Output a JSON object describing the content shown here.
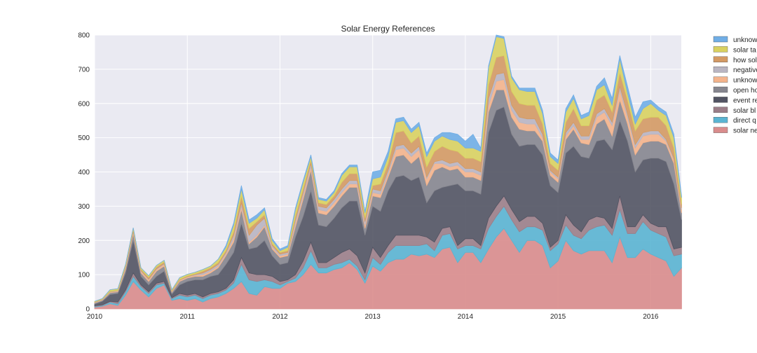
{
  "chart_data": {
    "type": "area",
    "stacked": true,
    "title": "Solar Energy References",
    "xlabel": "",
    "ylabel": "",
    "xlim": [
      2010.0,
      2016.33
    ],
    "ylim": [
      0,
      800
    ],
    "x_ticks": [
      "2010",
      "2011",
      "2012",
      "2013",
      "2014",
      "2015",
      "2016"
    ],
    "y_ticks": [
      "0",
      "100",
      "200",
      "300",
      "400",
      "500",
      "600",
      "700",
      "800"
    ],
    "grid": true,
    "background": "#eaeaf2",
    "legend_position": "right, outside",
    "x": [
      "2010-01",
      "2010-02",
      "2010-03",
      "2010-04",
      "2010-05",
      "2010-06",
      "2010-07",
      "2010-08",
      "2010-09",
      "2010-10",
      "2010-11",
      "2010-12",
      "2011-01",
      "2011-02",
      "2011-03",
      "2011-04",
      "2011-05",
      "2011-06",
      "2011-07",
      "2011-08",
      "2011-09",
      "2011-10",
      "2011-11",
      "2011-12",
      "2012-01",
      "2012-02",
      "2012-03",
      "2012-04",
      "2012-05",
      "2012-06",
      "2012-07",
      "2012-08",
      "2012-09",
      "2012-10",
      "2012-11",
      "2012-12",
      "2013-01",
      "2013-02",
      "2013-03",
      "2013-04",
      "2013-05",
      "2013-06",
      "2013-07",
      "2013-08",
      "2013-09",
      "2013-10",
      "2013-11",
      "2013-12",
      "2014-01",
      "2014-02",
      "2014-03",
      "2014-04",
      "2014-05",
      "2014-06",
      "2014-07",
      "2014-08",
      "2014-09",
      "2014-10",
      "2014-11",
      "2014-12",
      "2015-01",
      "2015-02",
      "2015-03",
      "2015-04",
      "2015-05",
      "2015-06",
      "2015-07",
      "2015-08",
      "2015-09",
      "2015-10",
      "2015-11",
      "2015-12",
      "2016-01",
      "2016-02",
      "2016-03",
      "2016-04",
      "2016-05"
    ],
    "series": [
      {
        "name": "solar ne",
        "color": "#d98c8c",
        "values": [
          5,
          8,
          15,
          10,
          40,
          80,
          55,
          35,
          60,
          70,
          25,
          30,
          25,
          30,
          20,
          30,
          35,
          45,
          60,
          80,
          45,
          40,
          65,
          60,
          60,
          75,
          80,
          100,
          130,
          105,
          105,
          115,
          120,
          135,
          115,
          75,
          125,
          110,
          135,
          145,
          145,
          160,
          155,
          160,
          150,
          175,
          180,
          135,
          165,
          165,
          135,
          175,
          210,
          235,
          200,
          165,
          200,
          200,
          185,
          120,
          140,
          200,
          170,
          160,
          170,
          170,
          170,
          135,
          210,
          150,
          150,
          175,
          160,
          150,
          140,
          95,
          120
        ]
      },
      {
        "name": "direct q",
        "color": "#5ab4d2",
        "values": [
          2,
          2,
          5,
          5,
          10,
          15,
          10,
          10,
          10,
          5,
          5,
          10,
          10,
          10,
          10,
          10,
          10,
          10,
          15,
          50,
          40,
          40,
          20,
          20,
          10,
          5,
          10,
          20,
          40,
          15,
          15,
          15,
          15,
          10,
          10,
          10,
          25,
          20,
          30,
          40,
          40,
          25,
          30,
          30,
          20,
          40,
          40,
          40,
          20,
          20,
          40,
          60,
          60,
          65,
          60,
          60,
          40,
          40,
          45,
          50,
          50,
          45,
          45,
          45,
          60,
          70,
          75,
          80,
          80,
          70,
          70,
          80,
          70,
          70,
          70,
          60,
          40
        ]
      },
      {
        "name": "solar bl",
        "color": "#9b7e88",
        "values": [
          2,
          2,
          2,
          5,
          5,
          10,
          5,
          5,
          5,
          5,
          3,
          5,
          5,
          5,
          5,
          5,
          5,
          5,
          10,
          20,
          20,
          20,
          15,
          15,
          10,
          5,
          10,
          20,
          25,
          15,
          15,
          20,
          30,
          30,
          30,
          20,
          30,
          20,
          20,
          30,
          30,
          30,
          30,
          20,
          25,
          20,
          20,
          10,
          20,
          20,
          10,
          30,
          30,
          30,
          30,
          30,
          30,
          30,
          20,
          10,
          10,
          30,
          30,
          20,
          30,
          30,
          20,
          20,
          40,
          20,
          20,
          20,
          20,
          20,
          30,
          20,
          20
        ]
      },
      {
        "name": "event re",
        "color": "#525463",
        "values": [
          5,
          10,
          20,
          25,
          50,
          95,
          25,
          20,
          20,
          30,
          10,
          25,
          40,
          40,
          50,
          50,
          50,
          70,
          80,
          100,
          70,
          80,
          100,
          60,
          50,
          50,
          110,
          130,
          150,
          110,
          105,
          115,
          130,
          140,
          160,
          110,
          120,
          135,
          160,
          170,
          175,
          160,
          170,
          100,
          150,
          120,
          120,
          180,
          140,
          140,
          150,
          250,
          280,
          260,
          220,
          220,
          210,
          210,
          200,
          180,
          140,
          180,
          230,
          220,
          180,
          220,
          230,
          230,
          220,
          250,
          160,
          160,
          190,
          200,
          190,
          190,
          80
        ]
      },
      {
        "name": "open ho",
        "color": "#86868f",
        "values": [
          3,
          3,
          5,
          5,
          10,
          20,
          10,
          10,
          15,
          15,
          5,
          10,
          10,
          10,
          10,
          10,
          20,
          25,
          30,
          40,
          15,
          30,
          40,
          20,
          20,
          20,
          30,
          50,
          60,
          35,
          35,
          35,
          35,
          40,
          40,
          20,
          30,
          40,
          40,
          60,
          60,
          50,
          60,
          50,
          60,
          60,
          45,
          45,
          40,
          40,
          40,
          60,
          60,
          50,
          50,
          50,
          40,
          40,
          40,
          30,
          30,
          40,
          50,
          40,
          40,
          50,
          60,
          40,
          60,
          50,
          50,
          50,
          50,
          50,
          50,
          60,
          20
        ]
      },
      {
        "name": "unknow",
        "color": "#f4b48c",
        "values": [
          1,
          1,
          2,
          2,
          5,
          5,
          5,
          5,
          5,
          5,
          2,
          3,
          3,
          3,
          5,
          5,
          5,
          5,
          10,
          10,
          5,
          5,
          5,
          5,
          5,
          5,
          10,
          10,
          10,
          10,
          10,
          10,
          10,
          10,
          10,
          10,
          10,
          10,
          10,
          20,
          20,
          20,
          20,
          20,
          20,
          10,
          10,
          10,
          15,
          15,
          15,
          20,
          25,
          30,
          20,
          20,
          20,
          20,
          10,
          10,
          10,
          10,
          10,
          10,
          15,
          20,
          20,
          30,
          30,
          20,
          20,
          20,
          20,
          20,
          10,
          10,
          10
        ]
      },
      {
        "name": "negative",
        "color": "#b9b5c2",
        "values": [
          1,
          1,
          1,
          1,
          2,
          2,
          2,
          2,
          2,
          2,
          1,
          1,
          1,
          2,
          5,
          5,
          5,
          5,
          10,
          10,
          20,
          30,
          20,
          5,
          5,
          5,
          10,
          10,
          10,
          10,
          10,
          10,
          10,
          10,
          10,
          10,
          10,
          10,
          10,
          10,
          10,
          10,
          10,
          5,
          5,
          10,
          10,
          10,
          10,
          10,
          10,
          20,
          20,
          20,
          15,
          15,
          15,
          15,
          10,
          5,
          5,
          10,
          10,
          10,
          10,
          10,
          10,
          10,
          10,
          10,
          10,
          10,
          10,
          10,
          5,
          5,
          5
        ]
      },
      {
        "name": "how sol",
        "color": "#d49a64",
        "values": [
          1,
          1,
          1,
          1,
          3,
          5,
          3,
          5,
          5,
          5,
          2,
          2,
          2,
          2,
          5,
          5,
          5,
          5,
          10,
          20,
          20,
          10,
          10,
          5,
          5,
          5,
          10,
          10,
          10,
          10,
          10,
          10,
          20,
          20,
          20,
          10,
          10,
          20,
          20,
          40,
          40,
          30,
          30,
          30,
          30,
          40,
          40,
          30,
          30,
          30,
          30,
          40,
          50,
          50,
          40,
          40,
          40,
          40,
          30,
          20,
          20,
          30,
          40,
          30,
          30,
          40,
          40,
          30,
          40,
          40,
          40,
          40,
          40,
          40,
          40,
          30,
          10
        ]
      },
      {
        "name": "solar ta",
        "color": "#d9d160",
        "values": [
          2,
          2,
          5,
          5,
          5,
          5,
          5,
          5,
          5,
          5,
          3,
          5,
          5,
          5,
          5,
          5,
          10,
          10,
          20,
          20,
          15,
          10,
          15,
          10,
          5,
          10,
          20,
          20,
          10,
          10,
          10,
          10,
          20,
          20,
          20,
          15,
          20,
          20,
          20,
          30,
          30,
          30,
          30,
          30,
          30,
          30,
          30,
          30,
          30,
          30,
          30,
          50,
          60,
          50,
          40,
          40,
          40,
          40,
          30,
          20,
          20,
          30,
          30,
          20,
          30,
          30,
          30,
          20,
          40,
          20,
          20,
          30,
          40,
          20,
          30,
          30,
          20
        ]
      },
      {
        "name": "unknow",
        "color": "#70aee6",
        "values": [
          0,
          0,
          0,
          0,
          0,
          0,
          0,
          0,
          0,
          0,
          0,
          0,
          0,
          0,
          0,
          0,
          0,
          5,
          5,
          10,
          10,
          10,
          5,
          5,
          5,
          5,
          5,
          5,
          5,
          5,
          5,
          5,
          5,
          5,
          5,
          5,
          20,
          20,
          15,
          10,
          10,
          10,
          10,
          10,
          10,
          10,
          20,
          20,
          20,
          40,
          10,
          5,
          5,
          5,
          5,
          5,
          10,
          10,
          10,
          10,
          10,
          10,
          10,
          10,
          10,
          10,
          20,
          20,
          10,
          20,
          20,
          20,
          10,
          10,
          10,
          10,
          5
        ]
      }
    ]
  }
}
